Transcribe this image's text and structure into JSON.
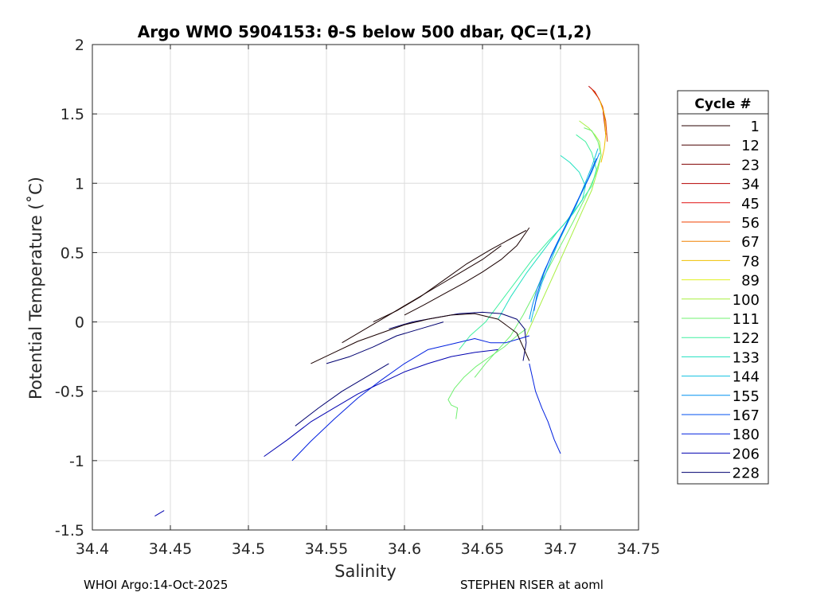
{
  "chart_data": {
    "type": "line",
    "title": "Argo WMO 5904153: θ-S below 500 dbar,  QC=(1,2)",
    "xlabel": "Salinity",
    "ylabel": "Potential Temperature (˚C)",
    "xlim": [
      34.4,
      34.75
    ],
    "ylim": [
      -1.5,
      2
    ],
    "xticks": [
      "34.4",
      "34.45",
      "34.5",
      "34.55",
      "34.6",
      "34.65",
      "34.7",
      "34.75"
    ],
    "yticks": [
      "2",
      "1.5",
      "1",
      "0.5",
      "0",
      "-0.5",
      "-1",
      "-1.5"
    ],
    "grid": true,
    "legend": {
      "title": "Cycle #",
      "placement": "right outside",
      "entries": [
        {
          "label": "1",
          "color": "#2a0000"
        },
        {
          "label": "12",
          "color": "#4a0000"
        },
        {
          "label": "23",
          "color": "#800000"
        },
        {
          "label": "34",
          "color": "#b40000"
        },
        {
          "label": "45",
          "color": "#e01010"
        },
        {
          "label": "56",
          "color": "#f04000"
        },
        {
          "label": "67",
          "color": "#f08000"
        },
        {
          "label": "78",
          "color": "#f0c000"
        },
        {
          "label": "89",
          "color": "#e0f020"
        },
        {
          "label": "100",
          "color": "#a8f040"
        },
        {
          "label": "111",
          "color": "#70f070"
        },
        {
          "label": "122",
          "color": "#40f0a0"
        },
        {
          "label": "133",
          "color": "#20e0c0"
        },
        {
          "label": "144",
          "color": "#10c0e0"
        },
        {
          "label": "155",
          "color": "#0090f0"
        },
        {
          "label": "167",
          "color": "#0050f0"
        },
        {
          "label": "180",
          "color": "#0020e0"
        },
        {
          "label": "206",
          "color": "#0000b0"
        },
        {
          "label": "228",
          "color": "#000070"
        }
      ]
    },
    "series": [
      {
        "color": "#c00000",
        "x": [
          34.718,
          34.722,
          34.725,
          34.727,
          34.728,
          34.729
        ],
        "y": [
          1.7,
          1.66,
          1.6,
          1.55,
          1.45,
          1.35
        ]
      },
      {
        "color": "#e04000",
        "x": [
          34.72,
          34.724,
          34.727,
          34.729,
          34.73
        ],
        "y": [
          1.68,
          1.62,
          1.55,
          1.45,
          1.3
        ]
      },
      {
        "color": "#f0c000",
        "x": [
          34.725,
          34.728,
          34.729,
          34.728,
          34.726
        ],
        "y": [
          1.6,
          1.5,
          1.35,
          1.25,
          1.15
        ]
      },
      {
        "color": "#a8f040",
        "x": [
          34.712,
          34.718,
          34.722,
          34.725,
          34.726,
          34.724,
          34.72,
          34.714,
          34.708,
          34.702,
          34.696,
          34.69,
          34.684,
          34.678
        ],
        "y": [
          1.45,
          1.4,
          1.35,
          1.3,
          1.2,
          1.1,
          0.95,
          0.8,
          0.65,
          0.5,
          0.35,
          0.2,
          0.05,
          -0.1
        ]
      },
      {
        "color": "#70f070",
        "x": [
          34.715,
          34.72,
          34.724,
          34.726,
          34.722,
          34.716,
          34.708,
          34.7,
          34.692,
          34.684,
          34.676,
          34.668,
          34.66,
          34.652,
          34.645
        ],
        "y": [
          1.4,
          1.38,
          1.3,
          1.2,
          1.05,
          0.9,
          0.72,
          0.55,
          0.38,
          0.22,
          0.05,
          -0.1,
          -0.2,
          -0.3,
          -0.4
        ]
      },
      {
        "color": "#70f070",
        "x": [
          34.678,
          34.672,
          34.664,
          34.655,
          34.646,
          34.638,
          34.632,
          34.628,
          34.63,
          34.634,
          34.633
        ],
        "y": [
          -0.05,
          -0.1,
          -0.18,
          -0.25,
          -0.32,
          -0.4,
          -0.48,
          -0.56,
          -0.6,
          -0.62,
          -0.7
        ]
      },
      {
        "color": "#40f0a0",
        "x": [
          34.71,
          34.716,
          34.72,
          34.723,
          34.72,
          34.712,
          34.702,
          34.692,
          34.682,
          34.672,
          34.662,
          34.652,
          34.642,
          34.635
        ],
        "y": [
          1.35,
          1.3,
          1.22,
          1.1,
          0.98,
          0.85,
          0.7,
          0.58,
          0.45,
          0.3,
          0.15,
          0.0,
          -0.1,
          -0.2
        ]
      },
      {
        "color": "#20e0c0",
        "x": [
          34.7,
          34.706,
          34.712,
          34.716,
          34.714,
          34.708,
          34.698,
          34.688,
          34.678,
          34.668,
          34.66
        ],
        "y": [
          1.2,
          1.15,
          1.08,
          0.98,
          0.88,
          0.78,
          0.65,
          0.5,
          0.35,
          0.18,
          0.02
        ]
      },
      {
        "color": "#10c0e0",
        "x": [
          34.724,
          34.72,
          34.715,
          34.71,
          34.704,
          34.698,
          34.693,
          34.688,
          34.684,
          34.681
        ],
        "y": [
          1.25,
          1.12,
          0.98,
          0.84,
          0.7,
          0.56,
          0.42,
          0.28,
          0.14,
          0.0
        ]
      },
      {
        "color": "#0090f0",
        "x": [
          34.725,
          34.72,
          34.714,
          34.708,
          34.702,
          34.696,
          34.69,
          34.685,
          34.682,
          34.68
        ],
        "y": [
          1.22,
          1.08,
          0.94,
          0.8,
          0.66,
          0.52,
          0.38,
          0.24,
          0.12,
          0.02
        ]
      },
      {
        "color": "#0050f0",
        "x": [
          34.723,
          34.718,
          34.712,
          34.706,
          34.7,
          34.694,
          34.689,
          34.685,
          34.683
        ],
        "y": [
          1.18,
          1.04,
          0.9,
          0.76,
          0.62,
          0.48,
          0.34,
          0.2,
          0.08
        ]
      },
      {
        "color": "#0020e0",
        "x": [
          34.68,
          34.674,
          34.665,
          34.655,
          34.645,
          34.63,
          34.615,
          34.6,
          34.585,
          34.57,
          34.555,
          34.54,
          34.528
        ],
        "y": [
          -0.1,
          -0.12,
          -0.15,
          -0.15,
          -0.12,
          -0.16,
          -0.2,
          -0.3,
          -0.42,
          -0.55,
          -0.7,
          -0.86,
          -1.0
        ]
      },
      {
        "color": "#0020e0",
        "x": [
          34.68,
          34.684,
          34.688,
          34.692,
          34.696,
          34.7
        ],
        "y": [
          -0.3,
          -0.5,
          -0.62,
          -0.72,
          -0.85,
          -0.95
        ]
      },
      {
        "color": "#0000b0",
        "x": [
          34.66,
          34.645,
          34.63,
          34.615,
          34.6,
          34.585,
          34.57,
          34.555,
          34.54,
          34.525,
          34.51
        ],
        "y": [
          -0.2,
          -0.22,
          -0.25,
          -0.3,
          -0.36,
          -0.44,
          -0.52,
          -0.62,
          -0.72,
          -0.85,
          -0.97
        ]
      },
      {
        "color": "#0000b0",
        "x": [
          34.44,
          34.446
        ],
        "y": [
          -1.4,
          -1.36
        ]
      },
      {
        "color": "#000070",
        "x": [
          34.59,
          34.605,
          34.62,
          34.635,
          34.65,
          34.662,
          34.672,
          34.677,
          34.678,
          34.676
        ],
        "y": [
          -0.05,
          0.0,
          0.03,
          0.06,
          0.07,
          0.06,
          0.02,
          -0.05,
          -0.15,
          -0.28
        ]
      },
      {
        "color": "#000070",
        "x": [
          34.55,
          34.565,
          34.58,
          34.595,
          34.61,
          34.625
        ],
        "y": [
          -0.3,
          -0.25,
          -0.18,
          -0.1,
          -0.05,
          0.0
        ]
      },
      {
        "color": "#000070",
        "x": [
          34.53,
          34.545,
          34.56,
          34.575,
          34.59
        ],
        "y": [
          -0.75,
          -0.62,
          -0.5,
          -0.4,
          -0.3
        ]
      },
      {
        "color": "#1a0000",
        "x": [
          34.56,
          34.575,
          34.59,
          34.605,
          34.62,
          34.635,
          34.65,
          34.662
        ],
        "y": [
          -0.15,
          -0.05,
          0.05,
          0.15,
          0.25,
          0.35,
          0.45,
          0.55
        ]
      },
      {
        "color": "#1a0000",
        "x": [
          34.58,
          34.595,
          34.61,
          34.625,
          34.64,
          34.655,
          34.668,
          34.678
        ],
        "y": [
          0.0,
          0.08,
          0.18,
          0.3,
          0.42,
          0.52,
          0.6,
          0.66
        ]
      },
      {
        "color": "#1a0000",
        "x": [
          34.6,
          34.612,
          34.625,
          34.638,
          34.65,
          34.662,
          34.672,
          34.68
        ],
        "y": [
          0.05,
          0.12,
          0.2,
          0.28,
          0.36,
          0.45,
          0.55,
          0.68
        ]
      },
      {
        "color": "#1a0000",
        "x": [
          34.54,
          34.555,
          34.57,
          34.585,
          34.6,
          34.615,
          34.63,
          34.645,
          34.66,
          34.672,
          34.68
        ],
        "y": [
          -0.3,
          -0.22,
          -0.14,
          -0.08,
          -0.02,
          0.02,
          0.05,
          0.06,
          0.02,
          -0.08,
          -0.28
        ]
      }
    ]
  },
  "footer": {
    "left": "WHOI Argo:14-Oct-2025",
    "right": "STEPHEN RISER at aoml"
  }
}
